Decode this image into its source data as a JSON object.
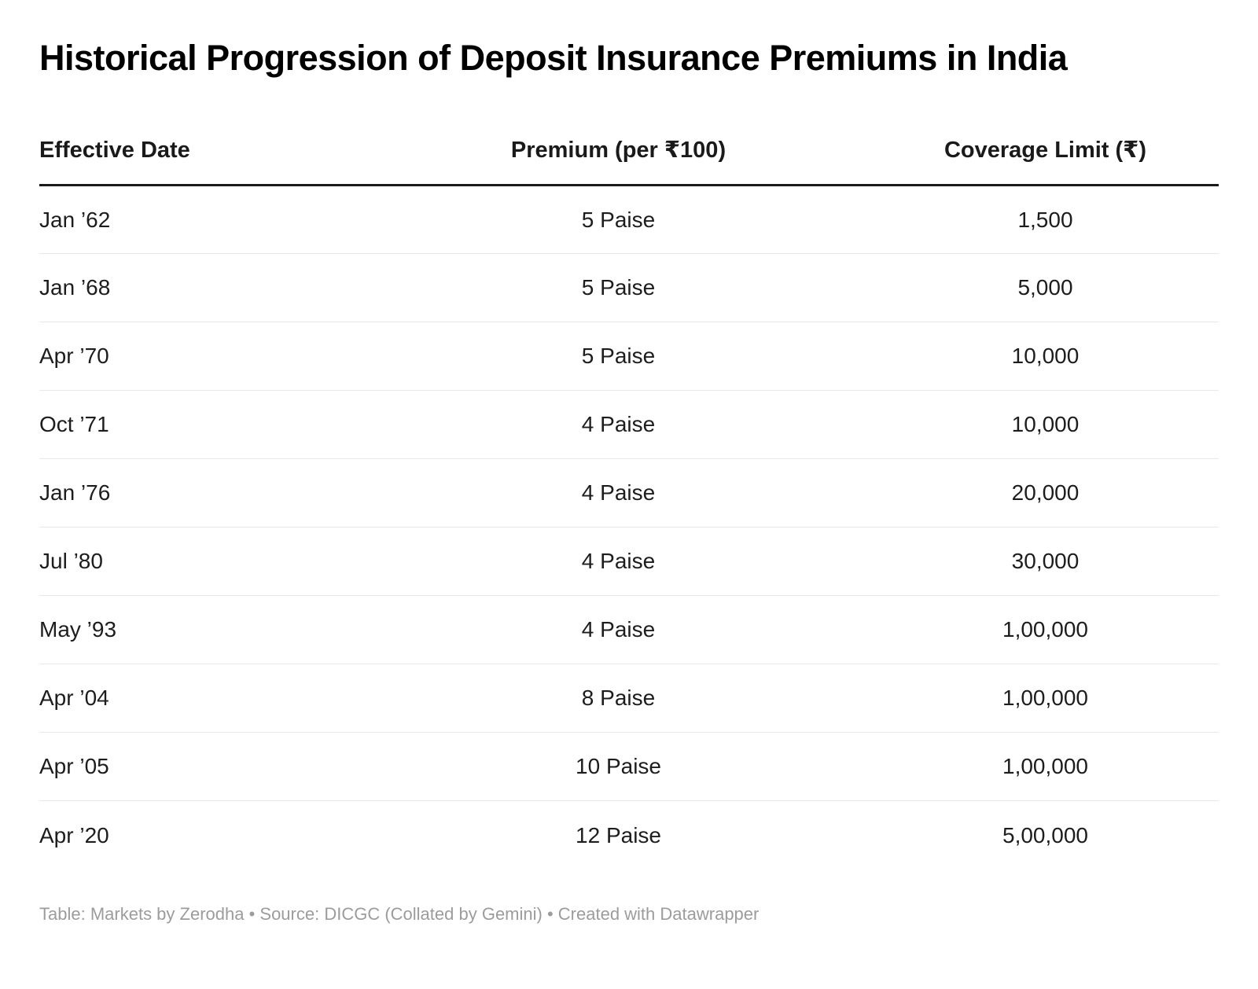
{
  "chart_data": {
    "type": "table",
    "title": "Historical Progression of Deposit Insurance Premiums in India",
    "columns": [
      "Effective Date",
      "Premium (per ₹100)",
      "Coverage Limit (₹)"
    ],
    "rows": [
      [
        "Jan ’62",
        "5 Paise",
        "1,500"
      ],
      [
        "Jan ’68",
        "5 Paise",
        "5,000"
      ],
      [
        "Apr ’70",
        "5 Paise",
        "10,000"
      ],
      [
        "Oct ’71",
        "4 Paise",
        "10,000"
      ],
      [
        "Jan ’76",
        "4 Paise",
        "20,000"
      ],
      [
        "Jul ’80",
        "4 Paise",
        "30,000"
      ],
      [
        "May ’93",
        "4 Paise",
        "1,00,000"
      ],
      [
        "Apr ’04",
        "8 Paise",
        "1,00,000"
      ],
      [
        "Apr ’05",
        "10 Paise",
        "1,00,000"
      ],
      [
        "Apr ’20",
        "12 Paise",
        "5,00,000"
      ]
    ],
    "column_alignment": [
      "left",
      "center",
      "center"
    ],
    "grid": "horizontal-row-separators",
    "legend_position": "none"
  },
  "footer": {
    "prefix": "Table: ",
    "table_credit": "Markets by Zerodha",
    "separator1": " • Source: ",
    "source": "DICGC (Collated by Gemini)",
    "separator2": " • ",
    "created": "Created with Datawrapper"
  },
  "colors": {
    "background": "#ffffff",
    "title_text": "#000000",
    "header_text": "#1a1a1a",
    "body_text": "#1d1d1d",
    "header_rule": "#1a1a1a",
    "row_separator": "#e8e8e8",
    "footer_text": "#9c9c9c"
  }
}
